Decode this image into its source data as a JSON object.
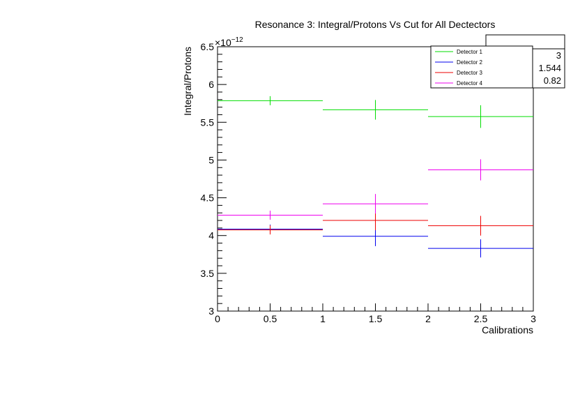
{
  "chart_data": {
    "type": "scatter",
    "title": "Resonance 3: Integral/Protons Vs Cut for All Dectectors",
    "xlabel": "Calibrations",
    "ylabel": "Integral/Protons",
    "y_exponent_base": "×10",
    "y_exponent_power": "−12",
    "xlim": [
      0,
      3
    ],
    "ylim": [
      3,
      6.5
    ],
    "x_ticks": [
      0,
      0.5,
      1,
      1.5,
      2,
      2.5,
      3
    ],
    "x_tick_labels": [
      "0",
      "0.5",
      "1",
      "1.5",
      "2",
      "2.5",
      "3"
    ],
    "y_ticks": [
      3,
      3.5,
      4,
      4.5,
      5,
      5.5,
      6,
      6.5
    ],
    "y_tick_labels": [
      "3",
      "3.5",
      "4",
      "4.5",
      "5",
      "5.5",
      "6",
      "6.5"
    ],
    "grid": false,
    "legend_position": "top-right",
    "stats_values": [
      "3",
      "1.544",
      "0.82"
    ],
    "series": [
      {
        "name": "Detector 1",
        "color": "#00dd00",
        "points": [
          {
            "x": 0.5,
            "y": 5.785,
            "xerr": 0.5,
            "yerr": 0.06
          },
          {
            "x": 1.5,
            "y": 5.665,
            "xerr": 0.5,
            "yerr": 0.13
          },
          {
            "x": 2.5,
            "y": 5.575,
            "xerr": 0.5,
            "yerr": 0.15
          }
        ]
      },
      {
        "name": "Detector 2",
        "color": "#0000ee",
        "points": [
          {
            "x": 0.5,
            "y": 4.085,
            "xerr": 0.5,
            "yerr": 0.06
          },
          {
            "x": 1.5,
            "y": 3.99,
            "xerr": 0.5,
            "yerr": 0.13
          },
          {
            "x": 2.5,
            "y": 3.83,
            "xerr": 0.5,
            "yerr": 0.12
          }
        ]
      },
      {
        "name": "Detector 3",
        "color": "#ee0000",
        "points": [
          {
            "x": 0.5,
            "y": 4.075,
            "xerr": 0.5,
            "yerr": 0.06
          },
          {
            "x": 1.5,
            "y": 4.2,
            "xerr": 0.5,
            "yerr": 0.13
          },
          {
            "x": 2.5,
            "y": 4.13,
            "xerr": 0.5,
            "yerr": 0.13
          }
        ]
      },
      {
        "name": "Detector 4",
        "color": "#ee00ee",
        "points": [
          {
            "x": 0.5,
            "y": 4.27,
            "xerr": 0.5,
            "yerr": 0.06
          },
          {
            "x": 1.5,
            "y": 4.42,
            "xerr": 0.5,
            "yerr": 0.13
          },
          {
            "x": 2.5,
            "y": 4.87,
            "xerr": 0.5,
            "yerr": 0.14
          }
        ]
      }
    ]
  }
}
